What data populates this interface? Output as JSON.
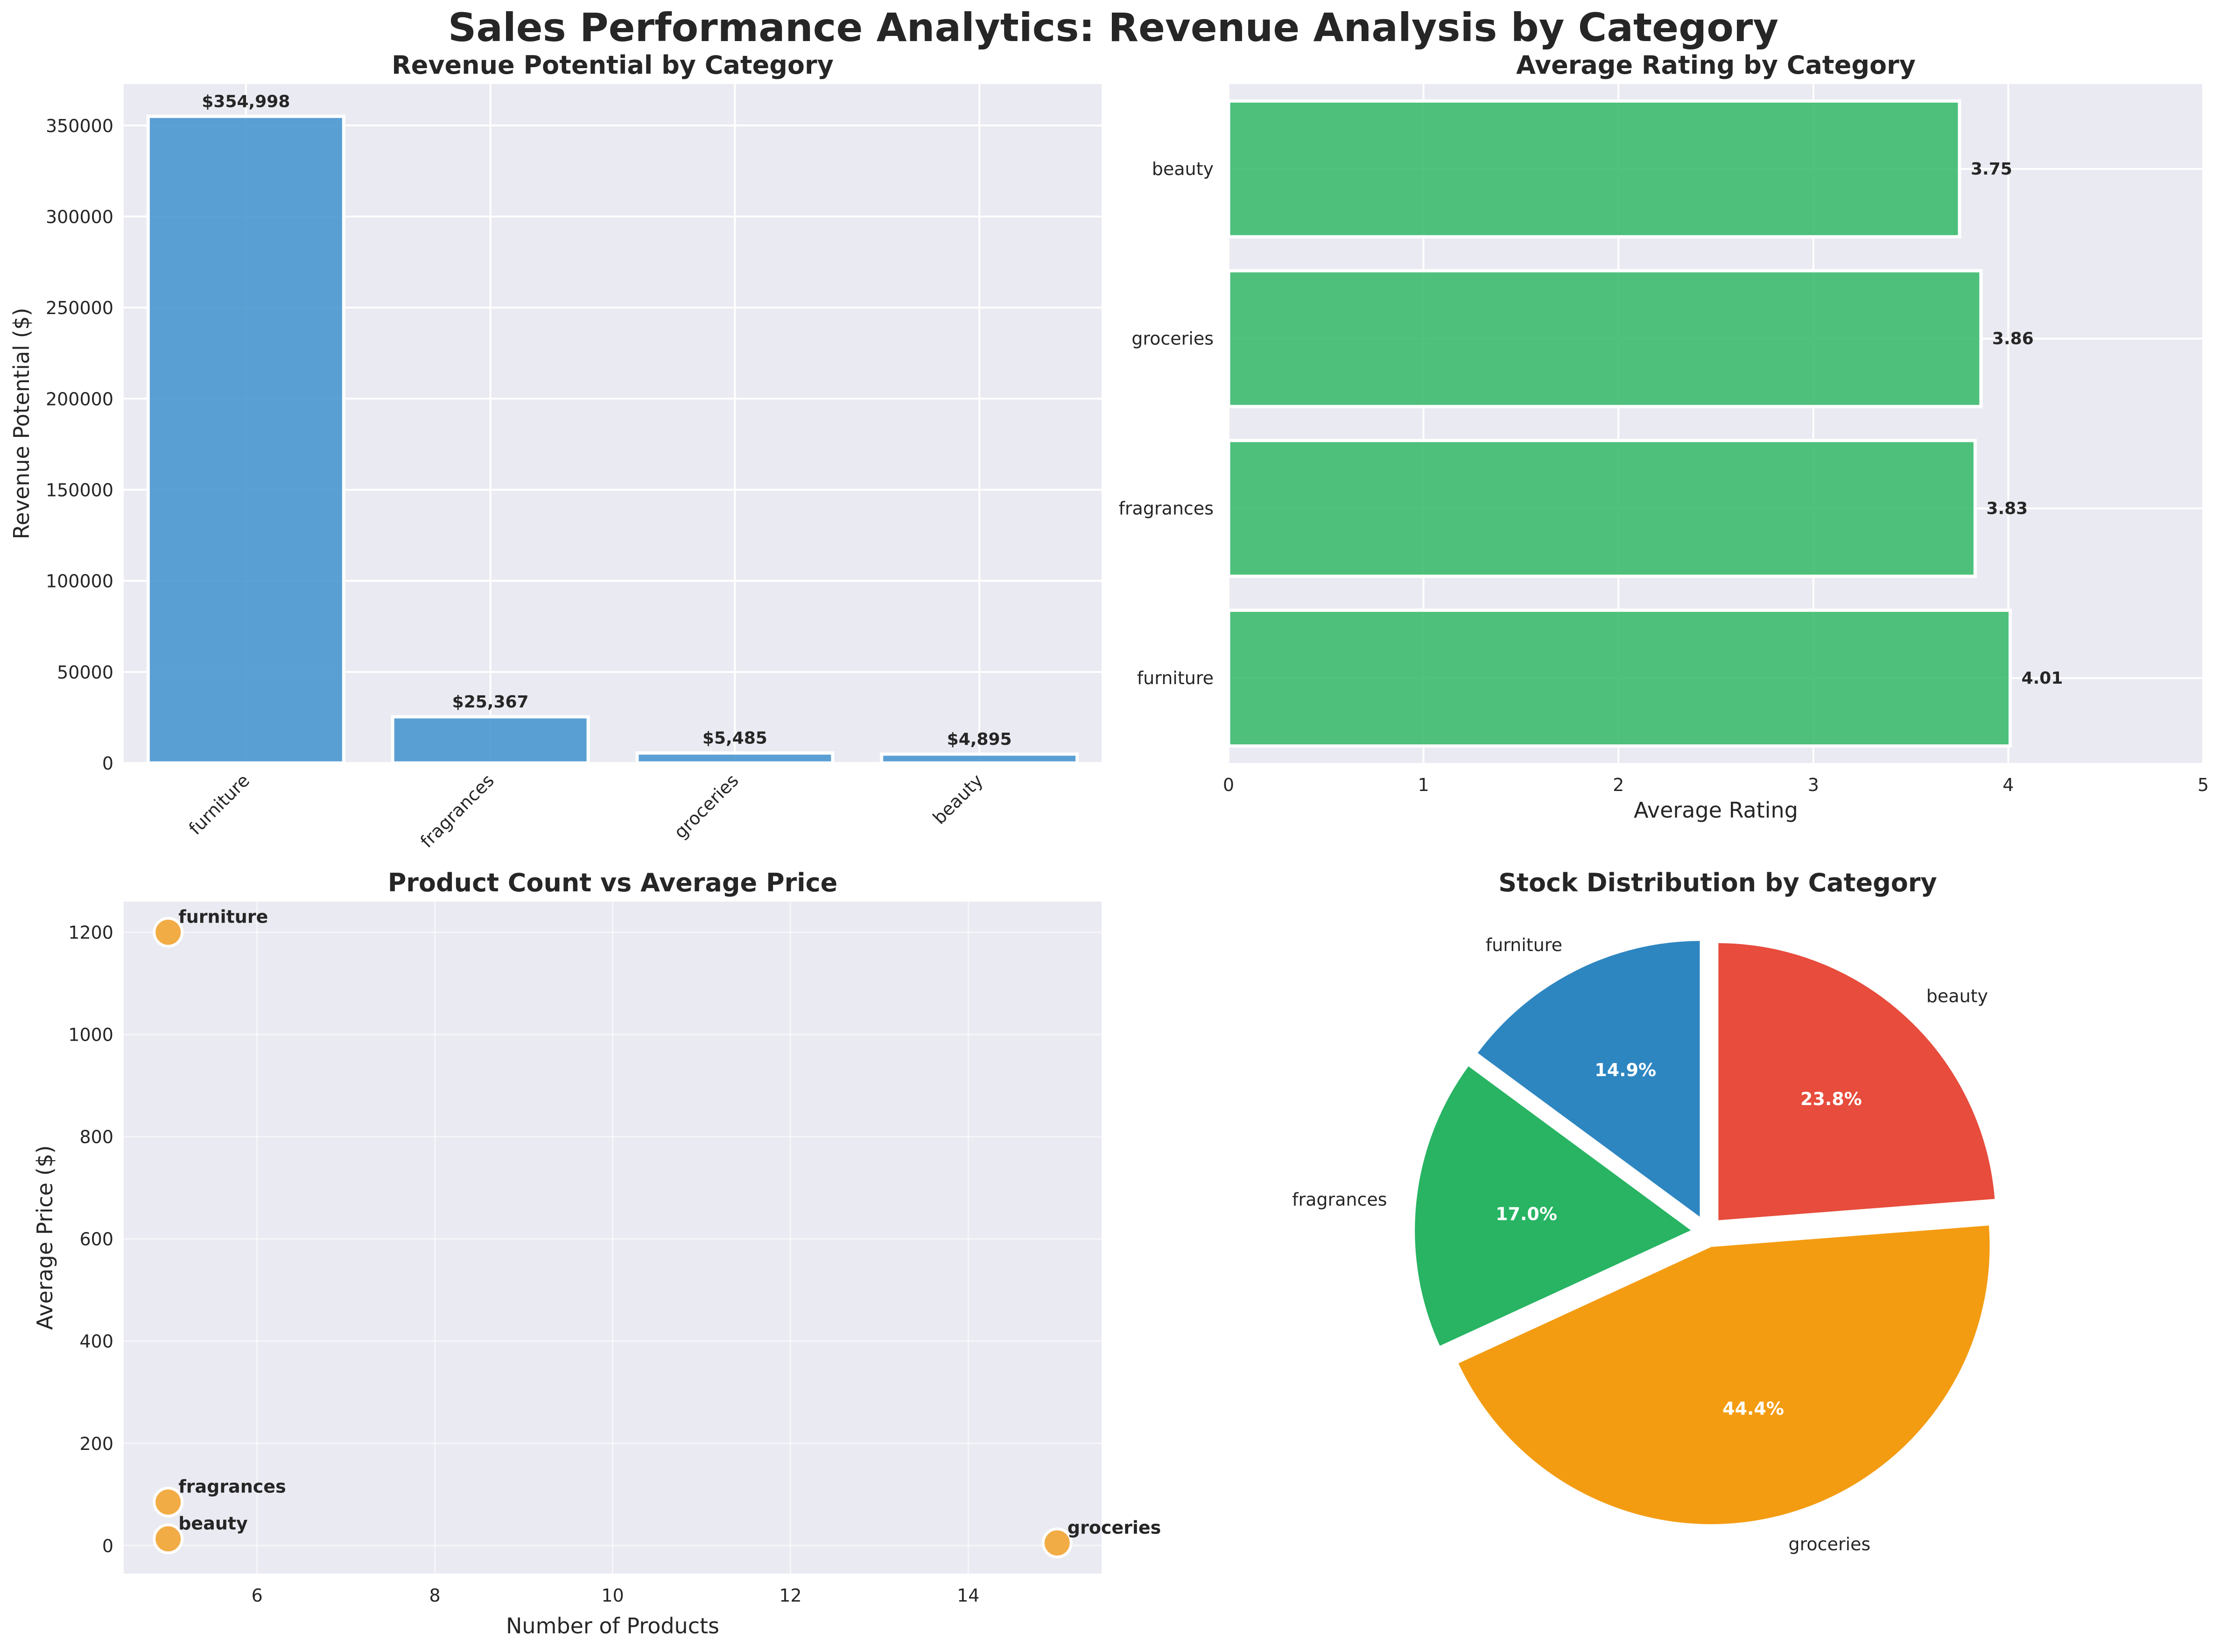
{
  "figure": {
    "title": "Sales Performance Analytics: Revenue Analysis by Category"
  },
  "chart_data": [
    {
      "type": "bar",
      "title": "Revenue Potential by Category",
      "xlabel": "",
      "ylabel": "Revenue Potential ($)",
      "categories": [
        "furniture",
        "fragrances",
        "groceries",
        "beauty"
      ],
      "values": [
        354998,
        25367,
        5485,
        4895
      ],
      "value_labels": [
        "$354,998",
        "$25,367",
        "$5,485",
        "$4,895"
      ],
      "yticks": [
        0,
        50000,
        100000,
        150000,
        200000,
        250000,
        300000,
        350000
      ],
      "ylim": [
        0,
        372748
      ],
      "color": "#4a97cf",
      "grid": true
    },
    {
      "type": "bar",
      "orientation": "horizontal",
      "title": "Average Rating by Category",
      "xlabel": "Average Rating",
      "ylabel": "",
      "categories": [
        "furniture",
        "fragrances",
        "groceries",
        "beauty"
      ],
      "values": [
        4.01,
        3.83,
        3.86,
        3.75
      ],
      "value_labels": [
        "4.01",
        "3.83",
        "3.86",
        "3.75"
      ],
      "xticks": [
        0,
        1,
        2,
        3,
        4,
        5
      ],
      "xlim": [
        0,
        5
      ],
      "color": "#3dbb6f",
      "grid": true
    },
    {
      "type": "scatter",
      "title": "Product Count vs Average Price",
      "xlabel": "Number of Products",
      "ylabel": "Average Price ($)",
      "points": [
        {
          "label": "furniture",
          "x": 5,
          "y": 1200
        },
        {
          "label": "fragrances",
          "x": 5,
          "y": 85
        },
        {
          "label": "beauty",
          "x": 5,
          "y": 13
        },
        {
          "label": "groceries",
          "x": 15,
          "y": 5
        }
      ],
      "xticks": [
        6,
        8,
        10,
        12,
        14
      ],
      "yticks": [
        0,
        200,
        400,
        600,
        800,
        1000,
        1200
      ],
      "xlim": [
        4.5,
        15.5
      ],
      "ylim": [
        -55,
        1260
      ],
      "color": "#f2a93b",
      "grid": true
    },
    {
      "type": "pie",
      "title": "Stock Distribution by Category",
      "slices": [
        {
          "label": "furniture",
          "value": 14.9,
          "pct_label": "14.9%",
          "color": "#2e86c1"
        },
        {
          "label": "fragrances",
          "value": 17.0,
          "pct_label": "17.0%",
          "color": "#28b463"
        },
        {
          "label": "groceries",
          "value": 44.4,
          "pct_label": "44.4%",
          "color": "#f39c12"
        },
        {
          "label": "beauty",
          "value": 23.8,
          "pct_label": "23.8%",
          "color": "#e74c3c"
        }
      ],
      "start_angle_deg": 90,
      "direction": "counterclockwise"
    }
  ]
}
